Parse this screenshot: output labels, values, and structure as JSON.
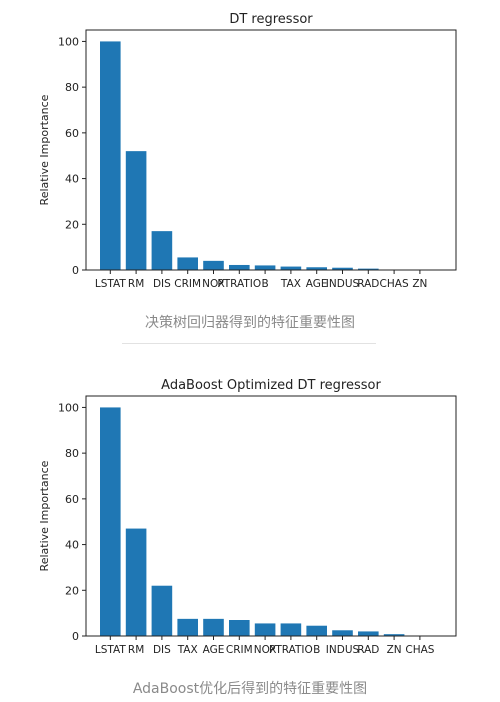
{
  "chart_data": [
    {
      "type": "bar",
      "title": "DT regressor",
      "xlabel": "",
      "ylabel": "Relative Importance",
      "ylim": [
        0,
        105
      ],
      "yticks": [
        0,
        20,
        40,
        60,
        80,
        100
      ],
      "categories": [
        "LSTAT",
        "RM",
        "DIS",
        "CRIM",
        "NOX",
        "PTRATIO",
        "B",
        "TAX",
        "AGE",
        "INDUS",
        "RAD",
        "CHAS",
        "ZN"
      ],
      "values": [
        100,
        52,
        17,
        5.5,
        4,
        2.2,
        2,
        1.5,
        1.2,
        1,
        0.6,
        0.1,
        0.05
      ],
      "color": "#1f77b4",
      "grid": false,
      "caption": "决策树回归器得到的特征重要性图"
    },
    {
      "type": "bar",
      "title": "AdaBoost Optimized DT regressor",
      "xlabel": "",
      "ylabel": "Relative Importance",
      "ylim": [
        0,
        105
      ],
      "yticks": [
        0,
        20,
        40,
        60,
        80,
        100
      ],
      "categories": [
        "LSTAT",
        "RM",
        "DIS",
        "TAX",
        "AGE",
        "CRIM",
        "NOX",
        "PTRATIO",
        "B",
        "INDUS",
        "RAD",
        "ZN",
        "CHAS"
      ],
      "values": [
        100,
        47,
        22,
        7.5,
        7.5,
        7,
        5.5,
        5.5,
        4.5,
        2.5,
        2,
        0.8,
        0.2
      ],
      "color": "#1f77b4",
      "grid": false,
      "caption": "AdaBoost优化后得到的特征重要性图"
    }
  ]
}
